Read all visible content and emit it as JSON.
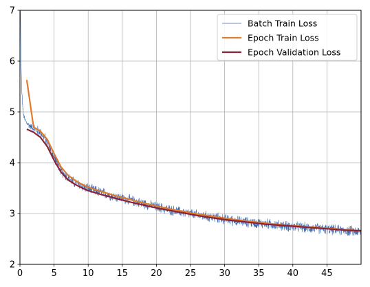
{
  "chart_data": {
    "type": "line",
    "title": "",
    "xlabel": "",
    "ylabel": "",
    "xlim": [
      0,
      50
    ],
    "ylim": [
      2,
      7
    ],
    "x_ticks": [
      0,
      5,
      10,
      15,
      20,
      25,
      30,
      35,
      40,
      45
    ],
    "y_ticks": [
      2,
      3,
      4,
      5,
      6,
      7
    ],
    "x_tick_labels": [
      "0",
      "5",
      "10",
      "15",
      "20",
      "25",
      "30",
      "35",
      "40",
      "45"
    ],
    "y_tick_labels": [
      "2",
      "3",
      "4",
      "5",
      "6",
      "7"
    ],
    "grid": true,
    "legend_position": "top-right",
    "series": [
      {
        "name": "Batch Train Loss",
        "color": "#3b6bb3",
        "style": "thin-noisy",
        "x": [
          0,
          0.08,
          0.15,
          0.25,
          0.35,
          0.5,
          0.7,
          1.0,
          1.5,
          2,
          3,
          4,
          5,
          6,
          7,
          8,
          9,
          10,
          12,
          14,
          16,
          18,
          20,
          22,
          24,
          26,
          28,
          30,
          32,
          34,
          36,
          38,
          40,
          42,
          44,
          46,
          48,
          50
        ],
        "y": [
          7.3,
          6.9,
          6.0,
          5.5,
          5.2,
          4.95,
          4.85,
          4.78,
          4.72,
          4.68,
          4.6,
          4.42,
          4.12,
          3.85,
          3.7,
          3.61,
          3.55,
          3.49,
          3.41,
          3.33,
          3.27,
          3.2,
          3.13,
          3.07,
          3.02,
          2.97,
          2.93,
          2.89,
          2.85,
          2.82,
          2.8,
          2.77,
          2.74,
          2.72,
          2.7,
          2.68,
          2.66,
          2.64
        ],
        "noise_amplitude": 0.12
      },
      {
        "name": "Epoch Train Loss",
        "color": "#e07b2e",
        "style": "line",
        "x": [
          1,
          2,
          3,
          4,
          5,
          6,
          7,
          8,
          9,
          10,
          12,
          14,
          16,
          18,
          20,
          22,
          24,
          26,
          28,
          30,
          32,
          34,
          36,
          38,
          40,
          42,
          44,
          46,
          48,
          50
        ],
        "y": [
          5.63,
          4.7,
          4.62,
          4.46,
          4.18,
          3.92,
          3.76,
          3.66,
          3.58,
          3.52,
          3.43,
          3.35,
          3.28,
          3.21,
          3.15,
          3.09,
          3.04,
          2.99,
          2.95,
          2.91,
          2.87,
          2.84,
          2.81,
          2.78,
          2.76,
          2.74,
          2.72,
          2.7,
          2.68,
          2.66
        ]
      },
      {
        "name": "Epoch Validation Loss",
        "color": "#8c2233",
        "style": "line",
        "x": [
          1,
          2,
          3,
          4,
          5,
          6,
          7,
          8,
          9,
          10,
          12,
          14,
          16,
          18,
          20,
          22,
          24,
          26,
          28,
          30,
          32,
          34,
          36,
          38,
          40,
          42,
          44,
          46,
          48,
          50
        ],
        "y": [
          4.66,
          4.6,
          4.5,
          4.32,
          4.05,
          3.82,
          3.67,
          3.58,
          3.51,
          3.45,
          3.37,
          3.3,
          3.23,
          3.17,
          3.11,
          3.06,
          3.01,
          2.96,
          2.92,
          2.88,
          2.85,
          2.82,
          2.79,
          2.77,
          2.75,
          2.73,
          2.71,
          2.69,
          2.67,
          2.66
        ]
      }
    ]
  }
}
